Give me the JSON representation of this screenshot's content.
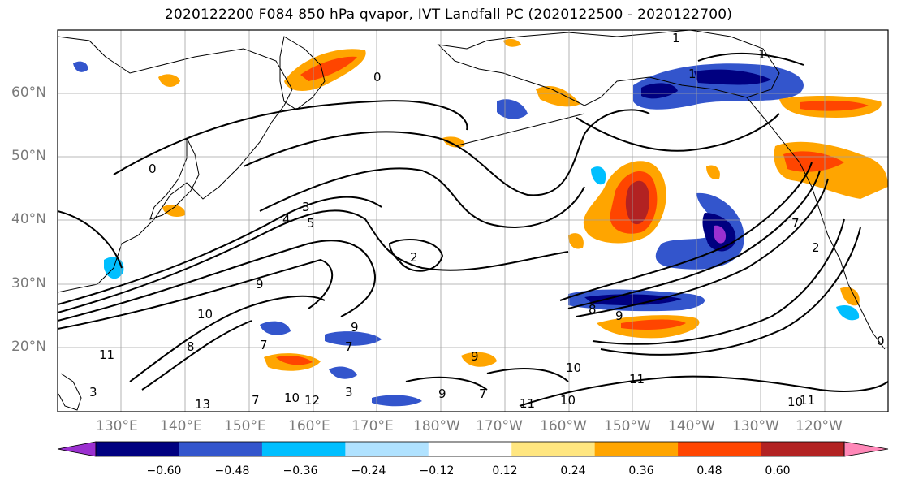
{
  "title": "2020122200 F084 850 hPa qvapor, IVT Landfall PC (2020122500 - 2020122700)",
  "lat_labels": [
    "60°N",
    "50°N",
    "40°N",
    "30°N",
    "20°N"
  ],
  "lon_labels": [
    "130°E",
    "140°E",
    "150°E",
    "160°E",
    "170°E",
    "180°W",
    "170°W",
    "160°W",
    "150°W",
    "140°W",
    "130°W",
    "120°W"
  ],
  "colorbar": {
    "colors": [
      "#9b30d0",
      "#000080",
      "#3355cc",
      "#00bfff",
      "#b0e2ff",
      "#ffffff",
      "#ffe680",
      "#ffa500",
      "#ff4500",
      "#b22222",
      "#ff88b8"
    ],
    "tick_labels": [
      "−0.60",
      "−0.48",
      "−0.36",
      "−0.24",
      "−0.12",
      "0.12",
      "0.24",
      "0.36",
      "0.48",
      "0.60"
    ]
  },
  "contour_labels": [
    "0",
    "0",
    "0",
    "1",
    "1",
    "1",
    "2",
    "2",
    "3",
    "3",
    "4",
    "5",
    "7",
    "7",
    "7",
    "8",
    "8",
    "9",
    "9",
    "9",
    "9",
    "10",
    "10",
    "10",
    "10",
    "10",
    "11",
    "11",
    "11",
    "11",
    "12",
    "13",
    "3",
    "7",
    "7",
    "9"
  ],
  "colors": {
    "grid": "#a0a0a0",
    "coast": "#000000",
    "contour": "#000000",
    "axis_label": "#7a7a7a"
  }
}
